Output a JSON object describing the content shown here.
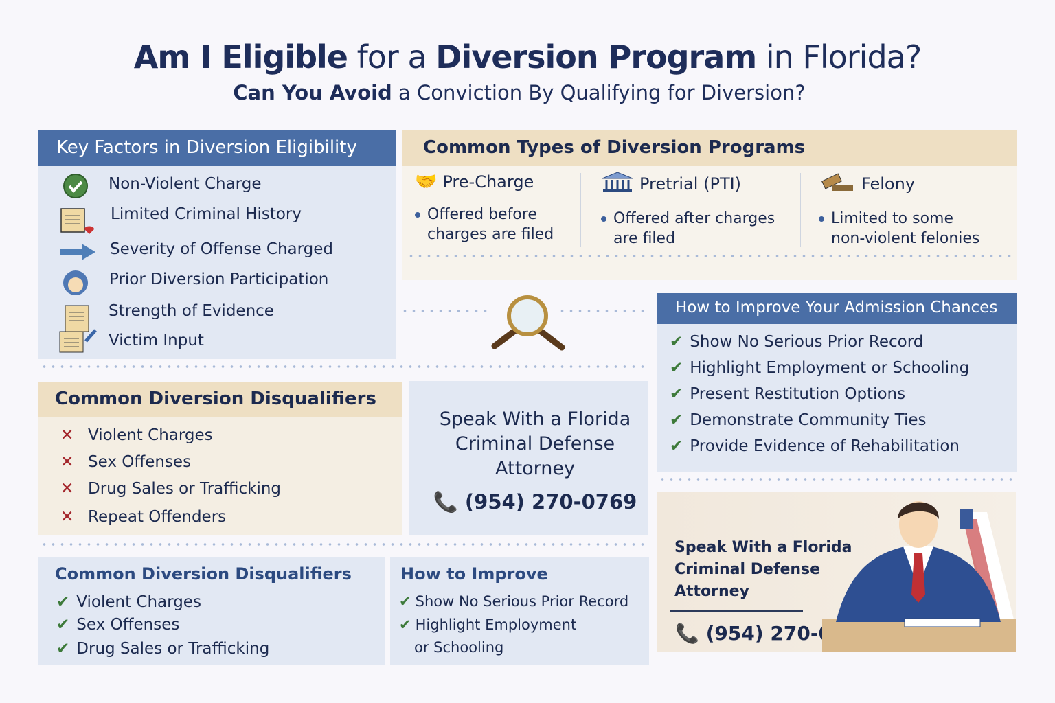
{
  "title": {
    "part1": "Am I Eligible",
    "part2": " for a ",
    "part3": "Diversion Program",
    "part4": " in Florida?"
  },
  "subtitle": {
    "bold": "Can You Avoid",
    "rest": " a Conviction By Qualifying for Diversion?"
  },
  "key_factors": {
    "heading": "Key Factors in Diversion Eligibility",
    "items": [
      {
        "label": "Non-Violent Charge",
        "icon": "check-circle-icon"
      },
      {
        "label": "Limited Criminal History",
        "icon": "document-icon"
      },
      {
        "label": "Severity of Offense Charged",
        "icon": "arrow-right-icon"
      },
      {
        "label": "Prior Diversion Participation",
        "icon": "person-icon"
      },
      {
        "label": "Strength of Evidence",
        "icon": "clipboard-icon"
      },
      {
        "label": "Victim Input",
        "icon": "clipboard-icon"
      }
    ]
  },
  "program_types": {
    "heading": "Common Types of Diversion Programs",
    "columns": [
      {
        "title": "Pre-Charge",
        "icon": "handshake-icon",
        "line1": "Offered before",
        "line2": "charges are filed"
      },
      {
        "title": "Pretrial (PTI)",
        "icon": "courthouse-icon",
        "line1": "Offered after charges",
        "line2": "are filed"
      },
      {
        "title": "Felony",
        "icon": "gavel-icon",
        "line1": "Limited to some",
        "line2": "non-violent felonies"
      }
    ]
  },
  "improve": {
    "heading": "How to Improve Your Admission Chances",
    "items": [
      "Show No Serious Prior Record",
      "Highlight Employment or Schooling",
      "Present Restitution Options",
      "Demonstrate Community Ties",
      "Provide Evidence of Rehabilitation"
    ]
  },
  "disqualifiers": {
    "heading": "Common Diversion Disqualifiers",
    "items": [
      "Violent Charges",
      "Sex Offenses",
      "Drug Sales or Trafficking",
      "Repeat Offenders"
    ]
  },
  "cta_center": {
    "line1": "Speak With a Florida",
    "line2": "Criminal Defense",
    "line3": "Attorney",
    "phone": "(954) 270-0769"
  },
  "bottom_disqualifiers": {
    "heading": "Common Diversion Disqualifiers",
    "items": [
      "Violent Charges",
      "Sex Offenses",
      "Drug Sales or Trafficking"
    ]
  },
  "bottom_improve": {
    "heading": "How to Improve",
    "items": [
      "Show No Serious Prior Record",
      "Highlight Employment",
      "or Schooling"
    ]
  },
  "cta_attorney": {
    "line1": "Speak With a Florida",
    "line2": "Criminal Defense",
    "line3": "Attorney",
    "phone": "(954) 270-0769"
  },
  "colors": {
    "navy": "#1c2a4f",
    "header_blue": "#4a6ea6",
    "panel_blue": "#e2e8f3",
    "header_beige": "#eedfc3",
    "panel_beige": "#f4eee3",
    "check_green": "#3d7a3a",
    "x_red": "#a4262c"
  }
}
